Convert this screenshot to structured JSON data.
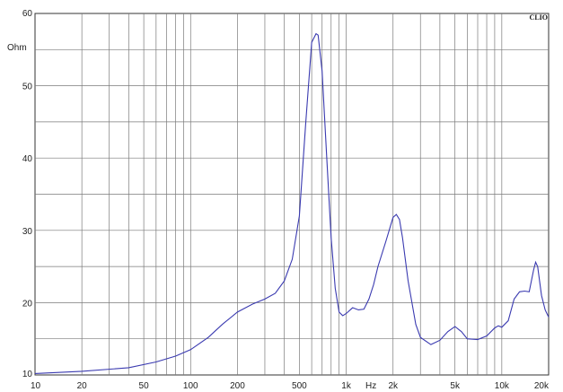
{
  "chart_data": {
    "type": "line",
    "title": "",
    "brand": "CLIO",
    "xlabel": "Hz",
    "ylabel": "Ohm",
    "xscale": "log",
    "xlim": [
      10,
      20000
    ],
    "ylim": [
      10,
      60
    ],
    "grid": true,
    "line_color": "#3a3ab0",
    "x_ticks": [
      {
        "v": 10,
        "label": "10"
      },
      {
        "v": 20,
        "label": "20"
      },
      {
        "v": 50,
        "label": "50"
      },
      {
        "v": 100,
        "label": "100"
      },
      {
        "v": 200,
        "label": "200"
      },
      {
        "v": 500,
        "label": "500"
      },
      {
        "v": 1000,
        "label": "1k"
      },
      {
        "v": 2000,
        "label": "2k"
      },
      {
        "v": 5000,
        "label": "5k"
      },
      {
        "v": 10000,
        "label": "10k"
      },
      {
        "v": 20000,
        "label": "20k"
      }
    ],
    "y_ticks": [
      {
        "v": 10,
        "label": "10"
      },
      {
        "v": 20,
        "label": "20"
      },
      {
        "v": 30,
        "label": "30"
      },
      {
        "v": 40,
        "label": "40"
      },
      {
        "v": 50,
        "label": "50"
      },
      {
        "v": 60,
        "label": "60"
      }
    ],
    "series": [
      {
        "x": [
          10,
          20,
          40,
          60,
          80,
          100,
          130,
          160,
          200,
          250,
          300,
          350,
          400,
          450,
          500,
          550,
          600,
          640,
          660,
          700,
          750,
          800,
          850,
          900,
          950,
          1000,
          1100,
          1200,
          1300,
          1400,
          1500,
          1600,
          1800,
          2000,
          2100,
          2200,
          2300,
          2500,
          2800,
          3000,
          3500,
          4000,
          4500,
          5000,
          5500,
          6000,
          7000,
          8000,
          9000,
          9500,
          10000,
          11000,
          12000,
          13000,
          14000,
          15000,
          16000,
          16500,
          17000,
          18000,
          19000,
          20000
        ],
        "y": [
          10.2,
          10.5,
          11.0,
          11.8,
          12.6,
          13.5,
          15.2,
          17.0,
          18.7,
          19.8,
          20.5,
          21.3,
          23.0,
          26.0,
          32.0,
          45.0,
          56.0,
          57.2,
          57.0,
          52.0,
          40.0,
          29.0,
          22.0,
          18.7,
          18.2,
          18.5,
          19.3,
          19.0,
          19.1,
          20.5,
          22.5,
          25.0,
          28.5,
          31.8,
          32.2,
          31.5,
          29.0,
          23.0,
          17.0,
          15.2,
          14.2,
          14.8,
          16.0,
          16.7,
          16.0,
          15.0,
          14.9,
          15.4,
          16.5,
          16.8,
          16.6,
          17.5,
          20.5,
          21.5,
          21.6,
          21.5,
          24.5,
          25.6,
          25.0,
          21.0,
          19.0,
          18.0
        ]
      }
    ]
  }
}
